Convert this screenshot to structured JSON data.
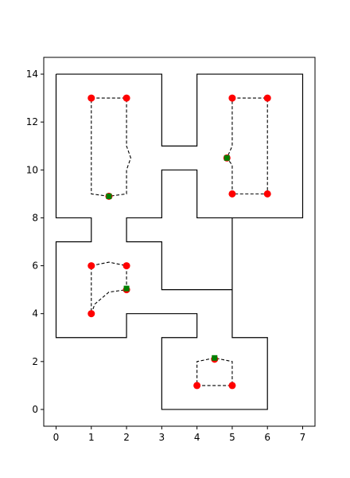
{
  "chart_data": {
    "type": "scatter",
    "title": "",
    "xlabel": "",
    "ylabel": "",
    "xlim": [
      -0.35,
      7.35
    ],
    "ylim": [
      -0.7,
      14.7
    ],
    "x_ticks": [
      "0",
      "1",
      "2",
      "3",
      "4",
      "5",
      "6",
      "7"
    ],
    "y_ticks": [
      "0",
      "2",
      "4",
      "6",
      "8",
      "10",
      "12",
      "14"
    ],
    "colors": {
      "wall": "#000000",
      "path": "#000000",
      "point": "#ff0000",
      "marker": "#008000"
    },
    "walls": [
      [
        [
          0,
          14
        ],
        [
          3,
          14
        ],
        [
          3,
          11
        ],
        [
          4,
          11
        ],
        [
          4,
          14
        ],
        [
          7,
          14
        ],
        [
          7,
          8
        ],
        [
          5,
          8
        ],
        [
          5,
          5
        ],
        [
          3,
          5
        ],
        [
          3,
          7
        ],
        [
          2,
          7
        ],
        [
          2,
          8
        ],
        [
          3,
          8
        ],
        [
          3,
          10
        ],
        [
          4,
          10
        ],
        [
          4,
          8
        ],
        [
          5,
          8
        ],
        [
          5,
          3
        ],
        [
          6,
          3
        ],
        [
          6,
          0
        ],
        [
          3,
          0
        ],
        [
          3,
          3
        ],
        [
          4,
          3
        ],
        [
          4,
          4
        ],
        [
          2,
          4
        ],
        [
          2,
          3
        ],
        [
          0,
          3
        ],
        [
          0,
          7
        ],
        [
          1,
          7
        ],
        [
          1,
          8
        ],
        [
          0,
          8
        ],
        [
          0,
          14
        ]
      ]
    ],
    "paths": [
      [
        [
          1,
          13
        ],
        [
          2,
          13
        ],
        [
          2,
          11
        ],
        [
          2.12,
          10.5
        ],
        [
          2,
          10
        ],
        [
          2,
          9
        ],
        [
          1.5,
          8.9
        ],
        [
          1,
          9
        ],
        [
          1,
          13
        ]
      ],
      [
        [
          5,
          13
        ],
        [
          6,
          13
        ],
        [
          6,
          9
        ],
        [
          5,
          9
        ],
        [
          5,
          10.2
        ],
        [
          4.85,
          10.5
        ],
        [
          5,
          11
        ],
        [
          5,
          13
        ]
      ],
      [
        [
          1,
          6
        ],
        [
          1.5,
          6.15
        ],
        [
          2,
          6
        ],
        [
          2,
          5
        ],
        [
          1.5,
          4.9
        ],
        [
          1.1,
          4.4
        ],
        [
          1,
          4
        ],
        [
          1,
          6
        ]
      ],
      [
        [
          4,
          1
        ],
        [
          5,
          1
        ],
        [
          5,
          2
        ],
        [
          4.5,
          2.15
        ],
        [
          4,
          2
        ],
        [
          4,
          1
        ]
      ]
    ],
    "red_points": [
      [
        1,
        13
      ],
      [
        2,
        13
      ],
      [
        1.5,
        8.9
      ],
      [
        5,
        13
      ],
      [
        6,
        13
      ],
      [
        5,
        9
      ],
      [
        6,
        9
      ],
      [
        4.85,
        10.5
      ],
      [
        1,
        6
      ],
      [
        2,
        6
      ],
      [
        2,
        5
      ],
      [
        1,
        4
      ],
      [
        4,
        1
      ],
      [
        5,
        1
      ],
      [
        4.5,
        2.1
      ]
    ],
    "green_markers": [
      [
        1.5,
        8.9
      ],
      [
        4.85,
        10.5
      ],
      [
        2,
        5.05
      ],
      [
        4.5,
        2.15
      ]
    ]
  }
}
